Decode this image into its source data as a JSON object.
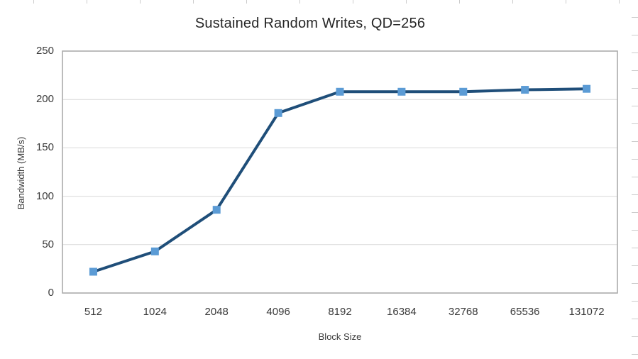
{
  "chart_data": {
    "type": "line",
    "title": "Sustained Random Writes, QD=256",
    "xlabel": "Block Size",
    "ylabel": "Bandwidth (MB/s)",
    "categories": [
      "512",
      "1024",
      "2048",
      "4096",
      "8192",
      "16384",
      "32768",
      "65536",
      "131072"
    ],
    "series": [
      {
        "name": "Bandwidth (MB/s)",
        "values": [
          22,
          43,
          86,
          186,
          208,
          208,
          208,
          210,
          211
        ]
      }
    ],
    "ylim": [
      0,
      250
    ],
    "ytick_interval": 50,
    "ytick_labels": [
      "0",
      "50",
      "100",
      "150",
      "200",
      "250"
    ],
    "grid": "horizontal",
    "legend_position": "none",
    "marker_shape": "square",
    "colors": {
      "line": "#1F4E79",
      "marker": "#5B9BD5",
      "gridline": "#D9D9D9",
      "plot_border": "#ACACAC",
      "tick_text": "#3A3A3A",
      "title_text": "#262626",
      "background": "#FFFFFF"
    }
  }
}
